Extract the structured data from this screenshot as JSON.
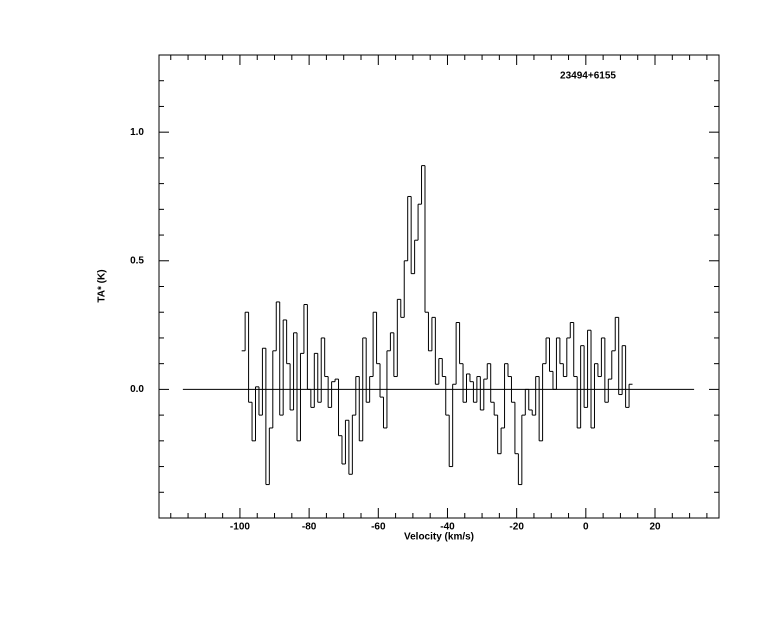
{
  "chart_data": {
    "type": "step",
    "title": "23494+6155",
    "xlabel": "Velocity (km/s)",
    "ylabel": "TA* (K)",
    "xlim": [
      -123.4,
      38.5
    ],
    "ylim": [
      -0.5,
      1.3
    ],
    "xticks": [
      -100,
      -80,
      -60,
      -40,
      -20,
      0,
      20
    ],
    "yticks": [
      {
        "value": 0,
        "label": "0.0"
      },
      {
        "value": 0.5,
        "label": "0.5"
      },
      {
        "value": 1.0,
        "label": "1.0"
      }
    ],
    "xminorticks": [
      -120,
      -115,
      -110,
      -105,
      -95,
      -90,
      -85,
      -75,
      -70,
      -65,
      -55,
      -50,
      -45,
      -35,
      -30,
      -25,
      -15,
      -10,
      -5,
      5,
      10,
      15,
      25,
      30,
      35
    ],
    "yminorticks": [
      -0.4,
      -0.3,
      -0.2,
      -0.1,
      0.1,
      0.2,
      0.3,
      0.4,
      0.6,
      0.7,
      0.8,
      0.9,
      1.1,
      1.2
    ],
    "baseline": {
      "y": 0,
      "x": [
        -116.5,
        31.3
      ]
    },
    "color": "#000000",
    "x": [
      -99,
      -98,
      -97,
      -96,
      -95,
      -94,
      -93,
      -92,
      -91,
      -90,
      -89,
      -88,
      -87,
      -86,
      -85,
      -84,
      -83,
      -82,
      -81,
      -80,
      -79,
      -78,
      -77,
      -76,
      -75,
      -74,
      -73,
      -72,
      -71,
      -70,
      -69,
      -68,
      -67,
      -66,
      -65,
      -64,
      -63,
      -62,
      -61,
      -60,
      -59,
      -58,
      -57,
      -56,
      -55,
      -54,
      -53,
      -52,
      -51,
      -50,
      -49,
      -48,
      -47,
      -46,
      -45,
      -44,
      -43,
      -42,
      -41,
      -40,
      -39,
      -38,
      -37,
      -36,
      -35,
      -34,
      -33,
      -32,
      -31,
      -30,
      -29,
      -28,
      -27,
      -26,
      -25,
      -24,
      -23,
      -22,
      -21,
      -20,
      -19,
      -18,
      -17,
      -16,
      -15,
      -14,
      -13,
      -12,
      -11,
      -10,
      -9,
      -8,
      -7,
      -6,
      -5,
      -4,
      -3,
      -2,
      -1,
      0,
      1,
      2,
      3,
      4,
      5,
      6,
      7,
      8,
      9,
      10,
      11,
      12,
      13
    ],
    "values": [
      0.15,
      0.3,
      -0.05,
      -0.2,
      0.01,
      -0.1,
      0.16,
      -0.37,
      -0.15,
      0.15,
      0.34,
      -0.1,
      0.27,
      0.1,
      -0.08,
      0.22,
      -0.2,
      0.14,
      0.33,
      0.0,
      -0.07,
      0.14,
      -0.05,
      0.2,
      0.05,
      -0.07,
      0.03,
      0.04,
      -0.18,
      -0.29,
      -0.12,
      -0.33,
      -0.1,
      0.05,
      -0.2,
      0.2,
      -0.05,
      0.05,
      0.3,
      0.1,
      -0.03,
      -0.15,
      0.15,
      0.22,
      0.05,
      0.35,
      0.28,
      0.5,
      0.75,
      0.45,
      0.58,
      0.72,
      0.87,
      0.3,
      0.15,
      0.28,
      0.02,
      0.12,
      0.05,
      -0.1,
      -0.3,
      0.02,
      0.26,
      0.1,
      -0.05,
      0.06,
      0.03,
      -0.05,
      0.05,
      -0.08,
      0.04,
      0.1,
      -0.05,
      -0.1,
      -0.25,
      -0.15,
      0.1,
      0.05,
      -0.05,
      -0.25,
      -0.37,
      -0.1,
      0.0,
      -0.08,
      -0.1,
      0.05,
      -0.2,
      0.1,
      0.2,
      0.07,
      0.0,
      0.2,
      0.1,
      0.05,
      0.2,
      0.26,
      0.05,
      -0.15,
      0.17,
      -0.07,
      0.23,
      -0.15,
      0.1,
      0.05,
      0.2,
      -0.05,
      0.04,
      0.15,
      0.28,
      -0.02,
      0.17,
      -0.07,
      0.02
    ]
  }
}
